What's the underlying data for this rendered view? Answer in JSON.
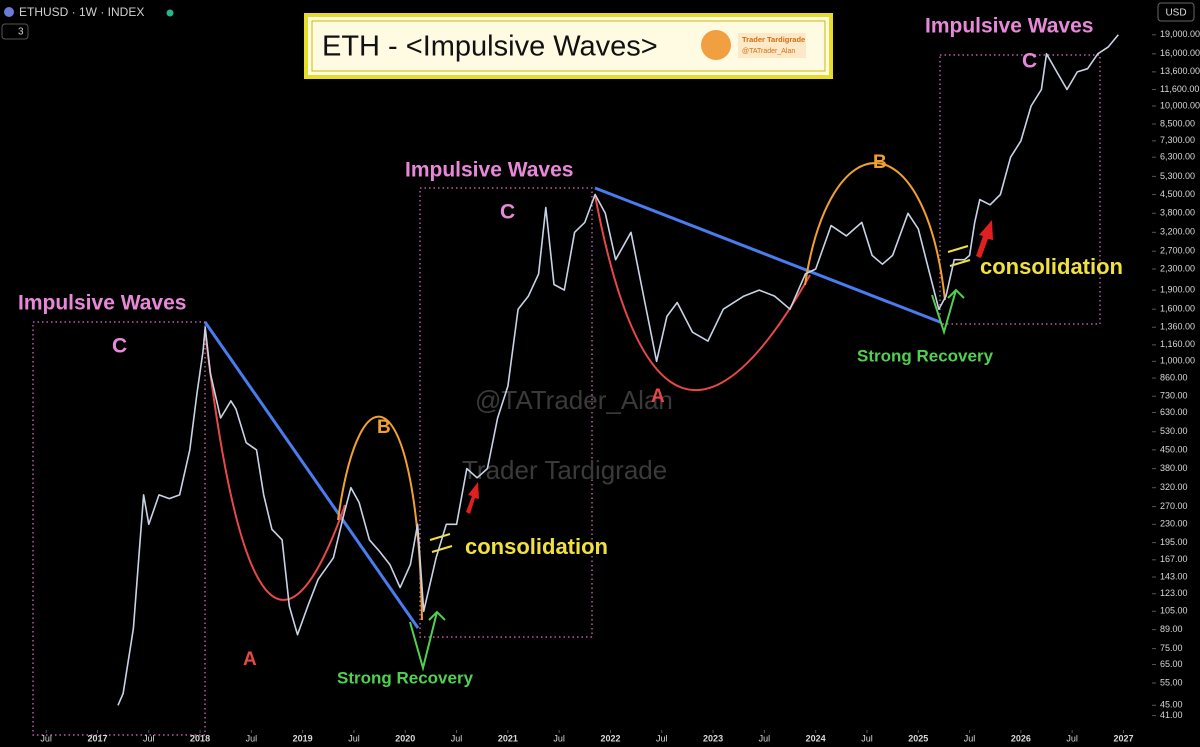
{
  "chart_data": {
    "type": "line",
    "symbol": "ETHUSD · 1W · INDEX",
    "badge": "3",
    "currency": "USD",
    "title": "ETH - <Impulsive Waves>",
    "logo": [
      "Trader Tardigrade",
      "@TATrader_Alan"
    ],
    "watermark": [
      "@TATrader_Alan",
      "Trader Tardigrade"
    ],
    "annotations": [
      "Impulsive Waves",
      "C",
      "Impulsive Waves",
      "C",
      "Impulsive Waves",
      "C",
      "A",
      "B",
      "A",
      "B",
      "consolidation",
      "consolidation",
      "Strong Recovery",
      "Strong Recovery"
    ],
    "log_scale": true,
    "grid": false,
    "color": "#c9d3e6",
    "x": [
      2017.2,
      2017.25,
      2017.35,
      2017.45,
      2017.5,
      2017.6,
      2017.7,
      2017.8,
      2017.9,
      2017.97,
      2018.03,
      2018.05,
      2018.1,
      2018.2,
      2018.3,
      2018.35,
      2018.45,
      2018.55,
      2018.62,
      2018.7,
      2018.8,
      2018.87,
      2018.95,
      2019.05,
      2019.15,
      2019.3,
      2019.4,
      2019.47,
      2019.55,
      2019.65,
      2019.75,
      2019.85,
      2019.95,
      2020.05,
      2020.12,
      2020.18,
      2020.3,
      2020.4,
      2020.5,
      2020.6,
      2020.7,
      2020.8,
      2020.9,
      2021.0,
      2021.1,
      2021.2,
      2021.3,
      2021.37,
      2021.45,
      2021.55,
      2021.65,
      2021.75,
      2021.85,
      2021.95,
      2022.05,
      2022.2,
      2022.3,
      2022.45,
      2022.55,
      2022.65,
      2022.8,
      2022.95,
      2023.1,
      2023.3,
      2023.45,
      2023.6,
      2023.75,
      2023.9,
      2024.0,
      2024.15,
      2024.3,
      2024.45,
      2024.55,
      2024.65,
      2024.75,
      2024.9,
      2025.0,
      2025.1,
      2025.2,
      2025.27,
      2025.35,
      2025.45,
      2025.5,
      2025.55,
      2025.6,
      2025.7,
      2025.8,
      2025.9,
      2026.0,
      2026.1,
      2026.2,
      2026.25,
      2026.35,
      2026.45,
      2026.55,
      2026.65,
      2026.75,
      2026.85,
      2026.95
    ],
    "values": [
      45,
      50,
      90,
      300,
      230,
      300,
      290,
      300,
      450,
      750,
      1100,
      1360,
      900,
      600,
      700,
      650,
      480,
      450,
      300,
      220,
      200,
      110,
      85,
      110,
      140,
      170,
      250,
      320,
      280,
      200,
      180,
      160,
      130,
      160,
      230,
      105,
      170,
      230,
      230,
      380,
      350,
      380,
      600,
      800,
      1600,
      1800,
      2200,
      4000,
      2000,
      1900,
      3200,
      3500,
      4500,
      3800,
      2500,
      3200,
      2000,
      1000,
      1500,
      1700,
      1300,
      1200,
      1600,
      1800,
      1900,
      1800,
      1600,
      2200,
      2300,
      3400,
      3100,
      3500,
      2600,
      2400,
      2600,
      3800,
      3300,
      2300,
      1600,
      1800,
      2500,
      2500,
      2600,
      3500,
      4300,
      4100,
      4500,
      6300,
      7300,
      10000,
      11600,
      16000,
      13600,
      11600,
      13600,
      14000,
      16000,
      17000,
      19000
    ],
    "xlim": [
      2016.05,
      2027.3
    ],
    "xticks": [
      {
        "value": 2016.5,
        "label": "Jul"
      },
      2017,
      {
        "value": 2017.5,
        "label": "Jul"
      },
      2018,
      {
        "value": 2018.5,
        "label": "Jul"
      },
      2019,
      {
        "value": 2019.5,
        "label": "Jul"
      },
      2020,
      {
        "value": 2020.5,
        "label": "Jul"
      },
      2021,
      {
        "value": 2021.5,
        "label": "Jul"
      },
      2022,
      {
        "value": 2022.5,
        "label": "Jul"
      },
      2023,
      {
        "value": 2023.5,
        "label": "Jul"
      },
      2024,
      {
        "value": 2024.5,
        "label": "Jul"
      },
      2025,
      {
        "value": 2025.5,
        "label": "Jul"
      },
      2026,
      {
        "value": 2026.5,
        "label": "Jul"
      },
      2027
    ],
    "ylim": [
      36,
      26000
    ],
    "yticks": [
      {
        "value": 41,
        "label": "41.00"
      },
      {
        "value": 45,
        "label": "45.00"
      },
      {
        "value": 55,
        "label": "55.00"
      },
      {
        "value": 65,
        "label": "65.00"
      },
      {
        "value": 75,
        "label": "75.00"
      },
      {
        "value": 89,
        "label": "89.00"
      },
      {
        "value": 105,
        "label": "105.00"
      },
      {
        "value": 123,
        "label": "123.00"
      },
      {
        "value": 143,
        "label": "143.00"
      },
      {
        "value": 167,
        "label": "167.00"
      },
      {
        "value": 195,
        "label": "195.00"
      },
      {
        "value": 230,
        "label": "230.00"
      },
      {
        "value": 270,
        "label": "270.00"
      },
      {
        "value": 320,
        "label": "320.00"
      },
      {
        "value": 380,
        "label": "380.00"
      },
      {
        "value": 450,
        "label": "450.00"
      },
      {
        "value": 530,
        "label": "530.00"
      },
      {
        "value": 630,
        "label": "630.00"
      },
      {
        "value": 730,
        "label": "730.00"
      },
      {
        "value": 860,
        "label": "860.00"
      },
      {
        "value": 1000,
        "label": "1,000.00"
      },
      {
        "value": 1160,
        "label": "1,160.00"
      },
      {
        "value": 1360,
        "label": "1,360.00"
      },
      {
        "value": 1600,
        "label": "1,600.00"
      },
      {
        "value": 1900,
        "label": "1,900.00"
      },
      {
        "value": 2300,
        "label": "2,300.00"
      },
      {
        "value": 2700,
        "label": "2,700.00"
      },
      {
        "value": 3200,
        "label": "3,200.00"
      },
      {
        "value": 3800,
        "label": "3,800.00"
      },
      {
        "value": 4500,
        "label": "4,500.00"
      },
      {
        "value": 5300,
        "label": "5,300.00"
      },
      {
        "value": 6300,
        "label": "6,300.00"
      },
      {
        "value": 7300,
        "label": "7,300.00"
      },
      {
        "value": 8500,
        "label": "8,500.00"
      },
      {
        "value": 10000,
        "label": "10,000.00"
      },
      {
        "value": 11600,
        "label": "11,600.00"
      },
      {
        "value": 13600,
        "label": "13,600.00"
      },
      {
        "value": 16000,
        "label": "16,000.00"
      },
      {
        "value": 19000,
        "label": "19,000.00"
      }
    ]
  }
}
